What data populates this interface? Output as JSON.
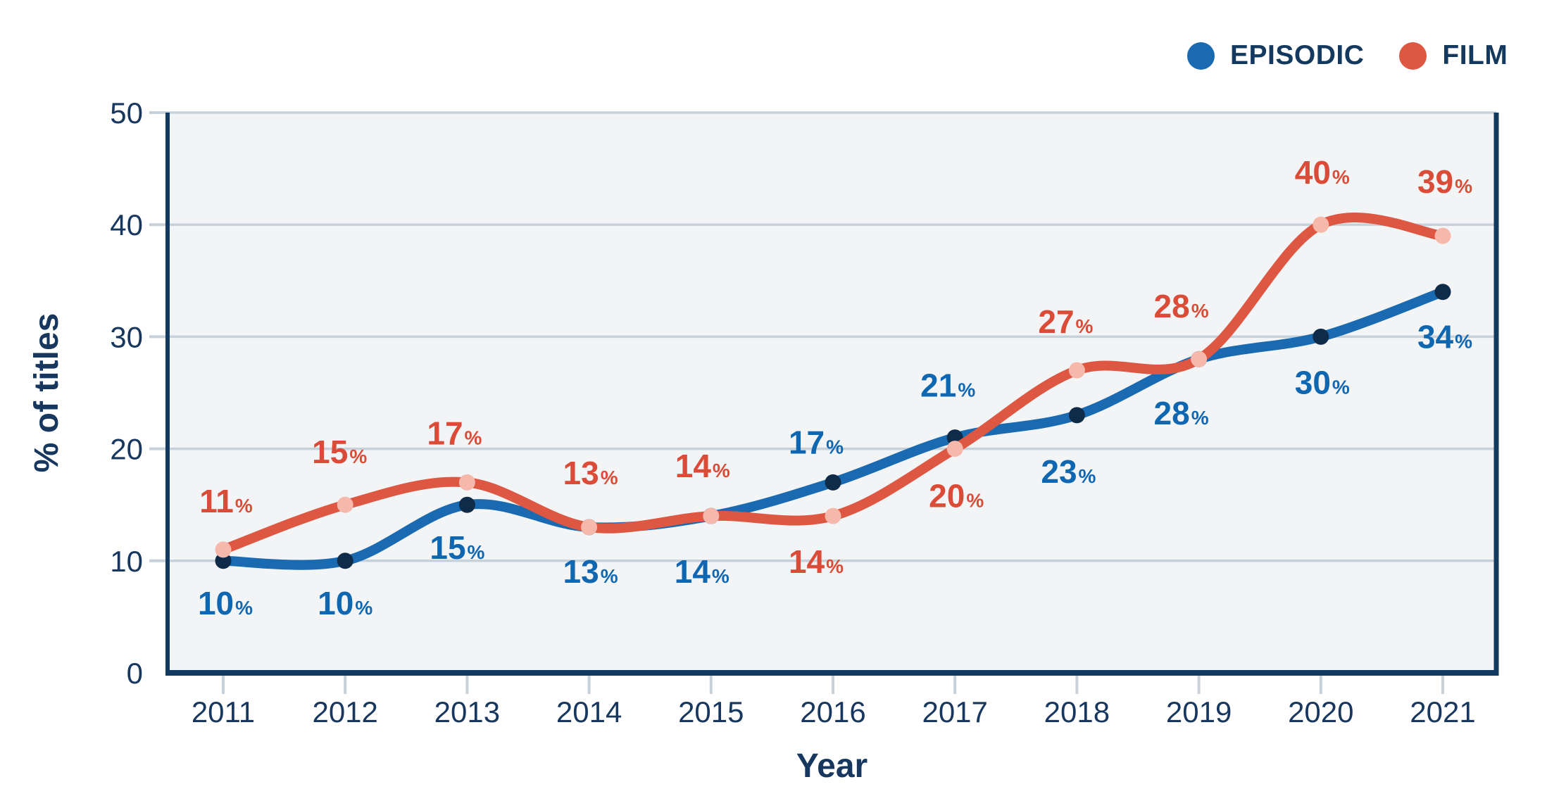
{
  "legend": {
    "items": [
      {
        "label": "EPISODIC",
        "color": "#1a6ab1"
      },
      {
        "label": "FILM",
        "color": "#dd5742"
      }
    ]
  },
  "chart_data": {
    "type": "line",
    "title": "",
    "categories": [
      2011,
      2012,
      2013,
      2014,
      2015,
      2016,
      2017,
      2018,
      2019,
      2020,
      2021
    ],
    "series": [
      {
        "name": "EPISODIC",
        "values": [
          10,
          10,
          15,
          13,
          14,
          17,
          21,
          23,
          28,
          30,
          34
        ],
        "line_color": "#1a6ab1",
        "marker_color": "#0e2b49",
        "label_color": "#0f67b1"
      },
      {
        "name": "FILM",
        "values": [
          11,
          15,
          17,
          13,
          14,
          14,
          20,
          27,
          28,
          40,
          39
        ],
        "line_color": "#dd5742",
        "marker_color": "#f6b8ab",
        "label_color": "#da4c37"
      }
    ],
    "xlabel": "Year",
    "ylabel": "% of titles",
    "ylim": [
      0,
      50
    ],
    "y_ticks": [
      0,
      10,
      20,
      30,
      40,
      50
    ],
    "value_suffix": "%",
    "grid": true,
    "legend_position": "top-right"
  },
  "colors": {
    "background": "#ffffff",
    "plot_background": "#f3f4f6",
    "gridline": "#c7d1da",
    "tick_mark": "#c7d1da",
    "axis_border": "#123a61",
    "tick_text": "#17375e",
    "axis_title_text": "#17375e",
    "legend_text": "#14395e"
  }
}
